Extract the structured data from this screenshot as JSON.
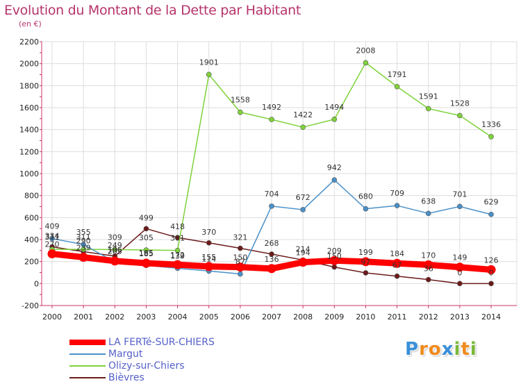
{
  "chart_data": {
    "type": "line",
    "title": "Evolution du Montant de la Dette par Habitant",
    "ylabel": "(en €)",
    "x": [
      "2000",
      "2001",
      "2002",
      "2003",
      "2004",
      "2005",
      "2006",
      "2007",
      "2008",
      "2009",
      "2010",
      "2011",
      "2012",
      "2013",
      "2014"
    ],
    "ylim": [
      -200,
      2200
    ],
    "yticks": [
      -200,
      0,
      200,
      400,
      600,
      800,
      1000,
      1200,
      1400,
      1600,
      1800,
      2000,
      2200
    ],
    "grid": true,
    "legend_position": "bottom-left",
    "series": [
      {
        "name": "LA FERTé-SUR-CHIERS",
        "color": "#ff0000",
        "values": [
          270,
          239,
          205,
          185,
          172,
          155,
          150,
          136,
          194,
          209,
          199,
          184,
          170,
          149,
          126
        ],
        "labels": [
          "270",
          "239",
          "205",
          "185",
          "172",
          "155",
          "150",
          "136",
          "194",
          "209",
          "199",
          "184",
          "170",
          "149",
          "126"
        ]
      },
      {
        "name": "Margut",
        "color": "#4a90c8",
        "values": [
          409,
          355,
          196,
          165,
          139,
          114,
          87,
          704,
          672,
          942,
          680,
          709,
          638,
          701,
          629
        ],
        "labels": [
          "409",
          "355",
          "196",
          "165",
          "139",
          "114",
          "87",
          "704",
          "672",
          "942",
          "680",
          "709",
          "638",
          "701",
          "629"
        ]
      },
      {
        "name": "Olizy-sur-Chiers",
        "color": "#7ed23a",
        "values": [
          311,
          311,
          309,
          305,
          301,
          1901,
          1558,
          1492,
          1422,
          1494,
          2008,
          1791,
          1591,
          1528,
          1336
        ],
        "labels": [
          "311",
          "311",
          "309",
          "305",
          "301",
          "1901",
          "1558",
          "1492",
          "1422",
          "1494",
          "2008",
          "1791",
          "1591",
          "1528",
          "1336"
        ]
      },
      {
        "name": "Bièvres",
        "color": "#6b1a1a",
        "values": [
          334,
          290,
          249,
          499,
          418,
          370,
          321,
          268,
          214,
          150,
          97,
          67,
          36,
          0,
          0
        ],
        "labels": [
          "334",
          "290",
          "249",
          "499",
          "418",
          "370",
          "321",
          "268",
          "214",
          "150",
          "97",
          "67",
          "36",
          "0",
          "0"
        ]
      }
    ]
  },
  "brand": {
    "letters": [
      "P",
      "r",
      "o",
      "x",
      "i",
      "t",
      "i"
    ],
    "colors": [
      "#3a8fd8",
      "#f08a1c",
      "#f08a1c",
      "#3a8fd8",
      "#7ab83a",
      "#f08a1c",
      "#7ab83a"
    ]
  }
}
